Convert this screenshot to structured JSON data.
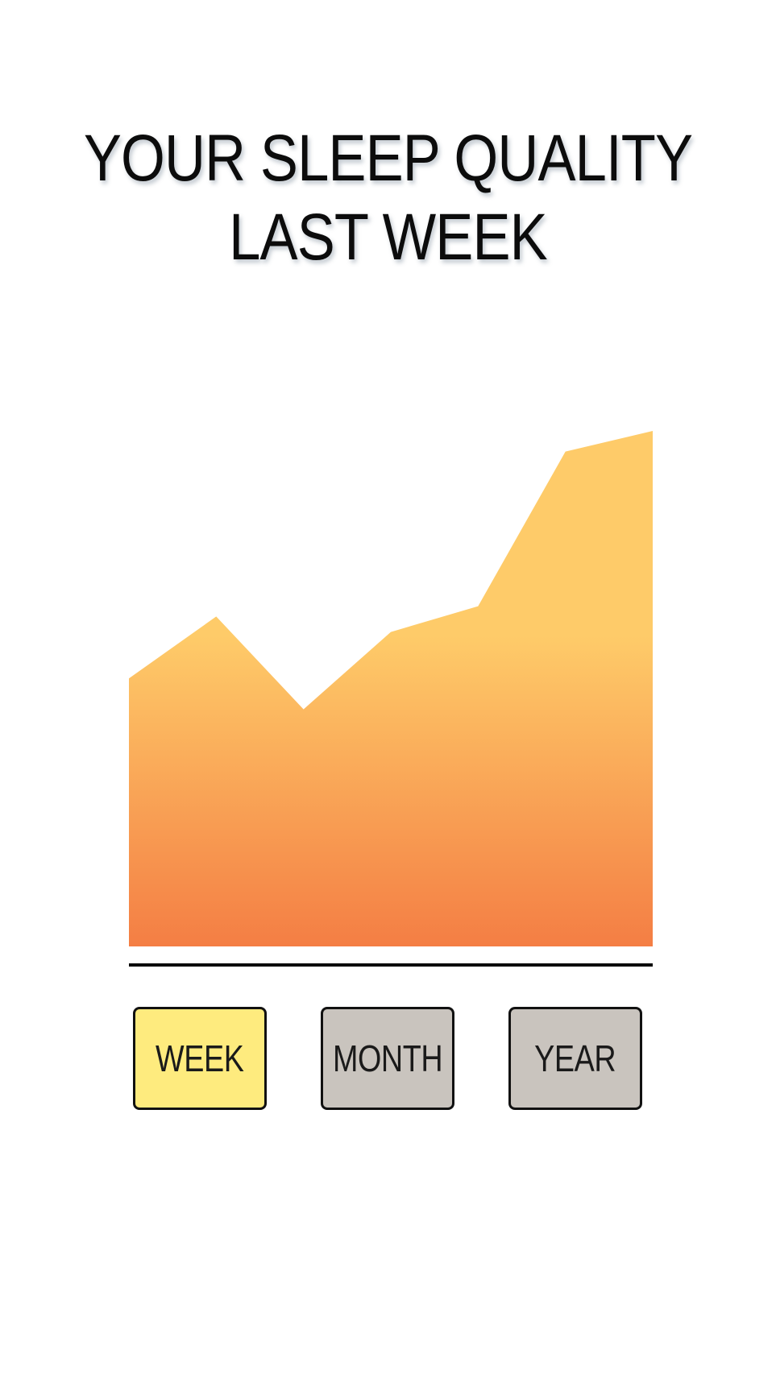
{
  "header": {
    "title_line1": "YOUR SLEEP QUALITY",
    "title_line2": "LAST WEEK"
  },
  "tabs": [
    {
      "label": "WEEK",
      "selected": true,
      "color": "#FEEB7E"
    },
    {
      "label": "MONTH",
      "selected": false,
      "color": "#C9C4BE"
    },
    {
      "label": "YEAR",
      "selected": false,
      "color": "#C9C4BE"
    }
  ],
  "colors": {
    "area_top": "#FECB69",
    "area_bottom": "#F47E44",
    "baseline": "#0A0A0A",
    "tab_selected": "#FEEB7E",
    "tab_default": "#C9C4BE"
  },
  "chart_data": {
    "type": "area",
    "x": [
      1,
      2,
      3,
      4,
      5,
      6,
      7
    ],
    "values": [
      52,
      64,
      46,
      61,
      66,
      96,
      100
    ],
    "ylim": [
      0,
      100
    ],
    "grid": false,
    "legend": "none"
  }
}
